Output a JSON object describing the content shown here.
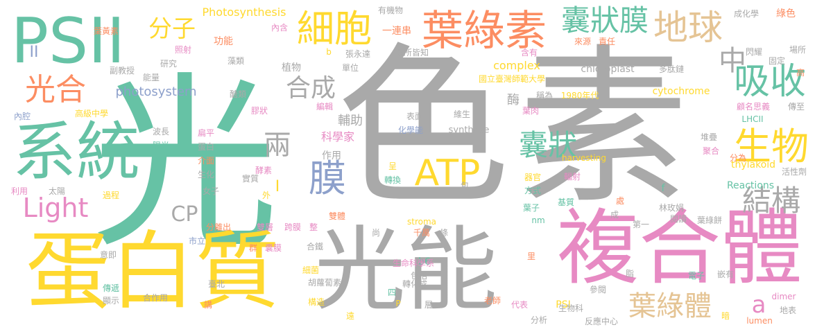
{
  "palette": {
    "gray": "#a9a9a9",
    "green": "#66c2a5",
    "yellow": "#ffd92f",
    "pink": "#e78ac3",
    "orange": "#fc8d62",
    "tan": "#e5c494",
    "blue": "#8da0cb",
    "lime": "#a6d854"
  },
  "words": [
    {
      "text": "光",
      "color": "gray"
    },
    {
      "text": "色",
      "color": "gray"
    },
    {
      "text": "素",
      "color": "gray"
    },
    {
      "text": "光",
      "color": "green"
    },
    {
      "text": "光能",
      "color": "gray"
    },
    {
      "text": "蛋白質",
      "color": "yellow"
    },
    {
      "text": "複合體",
      "color": "pink"
    },
    {
      "text": "系統",
      "color": "green"
    },
    {
      "text": "PSII",
      "color": "green"
    },
    {
      "text": "葉綠素",
      "color": "orange"
    },
    {
      "text": "細胞",
      "color": "yellow"
    },
    {
      "text": "囊狀膜",
      "color": "green"
    },
    {
      "text": "地球",
      "color": "tan"
    },
    {
      "text": "中",
      "color": "gray"
    },
    {
      "text": "吸收",
      "color": "green"
    },
    {
      "text": "生物",
      "color": "yellow"
    },
    {
      "text": "ATP",
      "color": "yellow"
    },
    {
      "text": "膜",
      "color": "blue"
    },
    {
      "text": "光合",
      "color": "orange"
    },
    {
      "text": "Light",
      "color": "pink"
    },
    {
      "text": "囊狀",
      "color": "green"
    },
    {
      "text": "結構",
      "color": "gray"
    },
    {
      "text": "葉綠體",
      "color": "tan"
    },
    {
      "text": "合成",
      "color": "gray"
    },
    {
      "text": "兩",
      "color": "gray"
    },
    {
      "text": "分子",
      "color": "yellow"
    },
    {
      "text": "CP",
      "color": "gray"
    },
    {
      "text": "a",
      "color": "pink"
    },
    {
      "text": "photosystem",
      "color": "blue"
    },
    {
      "text": "Photosynthesis",
      "color": "yellow"
    },
    {
      "text": "complex",
      "color": "yellow"
    },
    {
      "text": "chloroplast",
      "color": "gray"
    },
    {
      "text": "cytochrome",
      "color": "yellow"
    },
    {
      "text": "synthase",
      "color": "gray"
    },
    {
      "text": "harvesting",
      "color": "yellow"
    },
    {
      "text": "thylakoid",
      "color": "yellow"
    },
    {
      "text": "Reactions",
      "color": "green"
    },
    {
      "text": "stroma",
      "color": "yellow"
    },
    {
      "text": "dimer",
      "color": "pink"
    },
    {
      "text": "lumen",
      "color": "orange"
    },
    {
      "text": "LHCII",
      "color": "green"
    },
    {
      "text": "PSI",
      "color": "yellow"
    },
    {
      "text": "b6",
      "color": "green"
    },
    {
      "text": "nm",
      "color": "green"
    },
    {
      "text": "f",
      "color": "green"
    },
    {
      "text": "b",
      "color": "yellow"
    },
    {
      "text": "I",
      "color": "yellow"
    },
    {
      "text": "II",
      "color": "blue"
    },
    {
      "text": "P",
      "color": "yellow"
    },
    {
      "text": "輔助",
      "color": "gray"
    },
    {
      "text": "科學家",
      "color": "pink"
    },
    {
      "text": "作用",
      "color": "gray"
    },
    {
      "text": "植物",
      "color": "gray"
    },
    {
      "text": "酶",
      "color": "gray"
    },
    {
      "text": "功能",
      "color": "orange"
    },
    {
      "text": "內含",
      "color": "pink"
    },
    {
      "text": "有機物",
      "color": "gray"
    },
    {
      "text": "一連串",
      "color": "orange"
    },
    {
      "text": "成化學",
      "color": "gray"
    },
    {
      "text": "綠色",
      "color": "orange"
    },
    {
      "text": "場所",
      "color": "gray"
    },
    {
      "text": "固定",
      "color": "gray"
    },
    {
      "text": "高",
      "color": "orange"
    },
    {
      "text": "葉黃素",
      "color": "orange"
    },
    {
      "text": "照射",
      "color": "pink"
    },
    {
      "text": "研究",
      "color": "gray"
    },
    {
      "text": "副教授",
      "color": "gray"
    },
    {
      "text": "能量",
      "color": "gray"
    },
    {
      "text": "高級中學",
      "color": "yellow"
    },
    {
      "text": "內腔",
      "color": "blue"
    },
    {
      "text": "藻類",
      "color": "gray"
    },
    {
      "text": "醣類",
      "color": "gray"
    },
    {
      "text": "膠狀",
      "color": "pink"
    },
    {
      "text": "編輯",
      "color": "pink"
    },
    {
      "text": "張永達",
      "color": "gray"
    },
    {
      "text": "單位",
      "color": "gray"
    },
    {
      "text": "眾所皆知",
      "color": "gray"
    },
    {
      "text": "含有",
      "color": "pink"
    },
    {
      "text": "來源",
      "color": "orange"
    },
    {
      "text": "責任",
      "color": "orange"
    },
    {
      "text": "閃耀",
      "color": "gray"
    },
    {
      "text": "多肽鏈",
      "color": "gray"
    },
    {
      "text": "國立臺灣師範大學",
      "color": "yellow"
    },
    {
      "text": "稱為",
      "color": "gray"
    },
    {
      "text": "1980年代",
      "color": "yellow"
    },
    {
      "text": "顧名思義",
      "color": "pink"
    },
    {
      "text": "傳至",
      "color": "gray"
    },
    {
      "text": "表面",
      "color": "gray"
    },
    {
      "text": "維生",
      "color": "gray"
    },
    {
      "text": "化學能",
      "color": "blue"
    },
    {
      "text": "葉肉",
      "color": "pink"
    },
    {
      "text": "堆疊",
      "color": "gray"
    },
    {
      "text": "聚合",
      "color": "pink"
    },
    {
      "text": "分為",
      "color": "orange"
    },
    {
      "text": "活性劑",
      "color": "gray"
    },
    {
      "text": "波長",
      "color": "gray"
    },
    {
      "text": "陽光",
      "color": "green"
    },
    {
      "text": "蛋白",
      "color": "gray"
    },
    {
      "text": "介面",
      "color": "orange"
    },
    {
      "text": "生化",
      "color": "gray"
    },
    {
      "text": "扁平",
      "color": "pink"
    },
    {
      "text": "酵素",
      "color": "pink"
    },
    {
      "text": "實質",
      "color": "gray"
    },
    {
      "text": "轉換",
      "color": "green"
    },
    {
      "text": "呈",
      "color": "yellow"
    },
    {
      "text": "器官",
      "color": "yellow"
    },
    {
      "text": "方式",
      "color": "green"
    },
    {
      "text": "輻射",
      "color": "pink"
    },
    {
      "text": "基質",
      "color": "green"
    },
    {
      "text": "包",
      "color": "gray"
    },
    {
      "text": "利用",
      "color": "pink"
    },
    {
      "text": "太陽",
      "color": "gray"
    },
    {
      "text": "過程",
      "color": "yellow"
    },
    {
      "text": "女子",
      "color": "gray"
    },
    {
      "text": "外",
      "color": "yellow"
    },
    {
      "text": "分離出",
      "color": "orange"
    },
    {
      "text": "雙層",
      "color": "pink"
    },
    {
      "text": "跨膜",
      "color": "pink"
    },
    {
      "text": "整",
      "color": "pink"
    },
    {
      "text": "雙體",
      "color": "orange"
    },
    {
      "text": "尚",
      "color": "gray"
    },
    {
      "text": "千萬",
      "color": "orange"
    },
    {
      "text": "條",
      "color": "gray"
    },
    {
      "text": "葉子",
      "color": "green"
    },
    {
      "text": "處",
      "color": "orange"
    },
    {
      "text": "成",
      "color": "gray"
    },
    {
      "text": "林玫娟",
      "color": "gray"
    },
    {
      "text": "閱讀",
      "color": "gray"
    },
    {
      "text": "葉綠餅",
      "color": "gray"
    },
    {
      "text": "第一",
      "color": "gray"
    },
    {
      "text": "核心",
      "color": "green"
    },
    {
      "text": "市立",
      "color": "blue"
    },
    {
      "text": "合鐵",
      "color": "gray"
    },
    {
      "text": "包括",
      "color": "gray"
    },
    {
      "text": "里",
      "color": "orange"
    },
    {
      "text": "意即",
      "color": "gray"
    },
    {
      "text": "群",
      "color": "orange"
    },
    {
      "text": "囊膜",
      "color": "pink"
    },
    {
      "text": "細菌",
      "color": "yellow"
    },
    {
      "text": "生命科學系",
      "color": "pink"
    },
    {
      "text": "轉化成",
      "color": "gray"
    },
    {
      "text": "臺北",
      "color": "gray"
    },
    {
      "text": "胡蘿蔔素",
      "color": "gray"
    },
    {
      "text": "四",
      "color": "green"
    },
    {
      "text": "脂",
      "color": "gray"
    },
    {
      "text": "電子",
      "color": "green"
    },
    {
      "text": "嵌有",
      "color": "gray"
    },
    {
      "text": "參閱",
      "color": "gray"
    },
    {
      "text": "傳遞",
      "color": "green"
    },
    {
      "text": "顯示",
      "color": "gray"
    },
    {
      "text": "合作用",
      "color": "gray"
    },
    {
      "text": "構造",
      "color": "yellow"
    },
    {
      "text": "層",
      "color": "gray"
    },
    {
      "text": "老師",
      "color": "orange"
    },
    {
      "text": "代表",
      "color": "pink"
    },
    {
      "text": "生物科",
      "color": "gray"
    },
    {
      "text": "地表",
      "color": "gray"
    },
    {
      "text": "暗",
      "color": "yellow"
    },
    {
      "text": "講",
      "color": "orange"
    },
    {
      "text": "遠",
      "color": "yellow"
    },
    {
      "text": "分析",
      "color": "gray"
    },
    {
      "text": "反應中心",
      "color": "gray"
    }
  ]
}
